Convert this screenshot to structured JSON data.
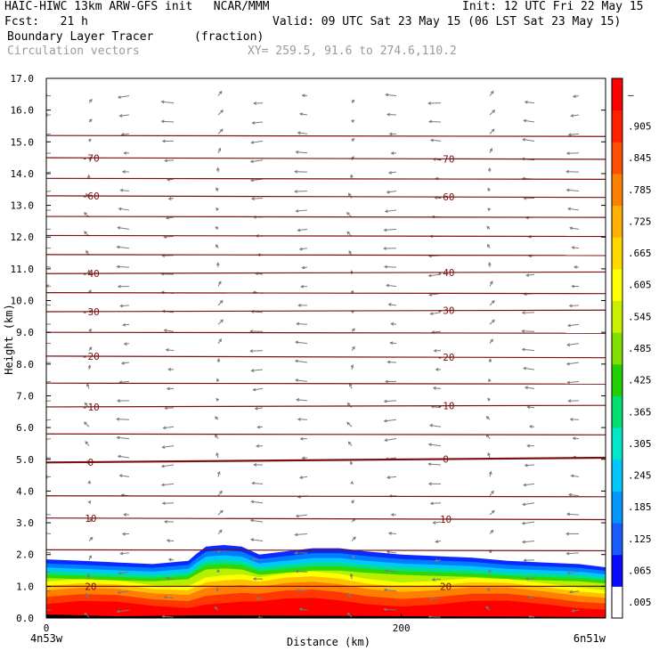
{
  "header": {
    "line1_left": "HAIC-HIWC 13km ARW-GFS init   NCAR/MMM",
    "line1_right": "Init: 12 UTC Fri 22 May 15",
    "line2_left": "Fcst:   21 h",
    "line2_right": "Valid: 09 UTC Sat 23 May 15 (06 LST Sat 23 May 15)",
    "line3_left": "Boundary Layer Tracer",
    "line3_mid": "(fraction)",
    "line4_left": "Circulation vectors",
    "line4_mid": "XY= 259.5, 91.6 to 274.6,110.2"
  },
  "chart_data": {
    "type": "heatmap",
    "title": "Boundary Layer Tracer",
    "units": "(fraction)",
    "ylabel": "Height (km)",
    "xlabel": "Distance (km)",
    "ylim": [
      0,
      17
    ],
    "xlim": [
      0,
      315
    ],
    "y_ticks": [
      "0.0",
      "1.0",
      "2.0",
      "3.0",
      "4.0",
      "5.0",
      "6.0",
      "7.0",
      "8.0",
      "9.0",
      "10.0",
      "11.0",
      "12.0",
      "13.0",
      "14.0",
      "15.0",
      "16.0",
      "17.0"
    ],
    "x_ticks": [
      {
        "value": 0,
        "label": "0"
      },
      {
        "value": 200,
        "label": "200"
      }
    ],
    "x_end_labels": {
      "left": "4n53w",
      "right": "6n51w"
    },
    "colorbar": {
      "labels": [
        ".005",
        ".065",
        ".125",
        ".185",
        ".245",
        ".305",
        ".365",
        ".425",
        ".485",
        ".545",
        ".605",
        ".665",
        ".725",
        ".785",
        ".845",
        ".905",
        "–"
      ],
      "colors": [
        "#ffffff",
        "#0a0aff",
        "#1a5cff",
        "#0096ff",
        "#00c8ff",
        "#00e8c8",
        "#00e070",
        "#20d000",
        "#80e000",
        "#c8f000",
        "#ffff00",
        "#ffd800",
        "#ffb000",
        "#ff8000",
        "#ff5000",
        "#ff2000",
        "#ff0000"
      ]
    },
    "tracer_top_km": {
      "x": [
        0,
        20,
        40,
        60,
        80,
        84,
        90,
        100,
        110,
        120,
        135,
        150,
        165,
        180,
        200,
        220,
        240,
        260,
        280,
        300,
        315
      ],
      "y": [
        1.85,
        1.8,
        1.75,
        1.7,
        1.8,
        2.0,
        2.25,
        2.3,
        2.25,
        2.0,
        2.1,
        2.2,
        2.2,
        2.1,
        2.0,
        1.95,
        1.9,
        1.8,
        1.75,
        1.7,
        1.6
      ]
    },
    "isotherms": [
      {
        "label": "20",
        "y": [
          1.0,
          1.0
        ]
      },
      {
        "label": "10",
        "y": [
          3.15,
          3.1
        ]
      },
      {
        "label": "0",
        "y": [
          4.9,
          5.05
        ]
      },
      {
        "label": "-10",
        "y": [
          6.65,
          6.7
        ]
      },
      {
        "label": "-20",
        "y": [
          8.25,
          8.2
        ]
      },
      {
        "label": "-30",
        "y": [
          9.65,
          9.7
        ]
      },
      {
        "label": "-40",
        "y": [
          10.85,
          10.9
        ]
      },
      {
        "label": "-60",
        "y": [
          13.3,
          13.25
        ]
      },
      {
        "label": "-70",
        "y": [
          14.5,
          14.45
        ]
      }
    ],
    "isotherm_label_x": [
      25,
      225
    ],
    "extra_isotherm_heights_km": [
      2.15,
      3.85,
      5.8,
      7.4,
      9.0,
      10.25,
      11.45,
      12.05,
      12.65,
      13.85,
      15.2
    ]
  }
}
